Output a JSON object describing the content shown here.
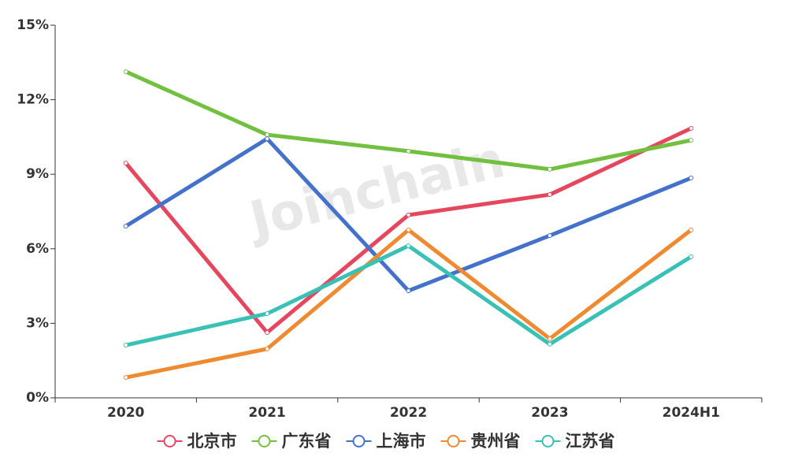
{
  "chart_data": {
    "type": "line",
    "watermark": "Joinchain",
    "categories": [
      "2020",
      "2021",
      "2022",
      "2023",
      "2024H1"
    ],
    "series": [
      {
        "name": "北京市",
        "color": "#e5475f",
        "values": [
          9.45,
          2.63,
          7.36,
          8.18,
          10.85
        ]
      },
      {
        "name": "广东省",
        "color": "#72c040",
        "values": [
          13.13,
          10.59,
          9.93,
          9.2,
          10.37
        ]
      },
      {
        "name": "上海市",
        "color": "#4472ca",
        "values": [
          6.91,
          10.43,
          4.31,
          6.53,
          8.85
        ]
      },
      {
        "name": "贵州省",
        "color": "#f08a31",
        "values": [
          0.82,
          1.97,
          6.76,
          2.38,
          6.76
        ]
      },
      {
        "name": "江苏省",
        "color": "#3ac1b5",
        "values": [
          2.12,
          3.39,
          6.12,
          2.16,
          5.68
        ]
      }
    ],
    "ylim": [
      0,
      15
    ],
    "yticks": [
      {
        "value": 0,
        "label": "0%"
      },
      {
        "value": 3,
        "label": "3%"
      },
      {
        "value": 6,
        "label": "6%"
      },
      {
        "value": 9,
        "label": "9%"
      },
      {
        "value": 12,
        "label": "12%"
      },
      {
        "value": 15,
        "label": "15%"
      }
    ],
    "grid": false
  }
}
